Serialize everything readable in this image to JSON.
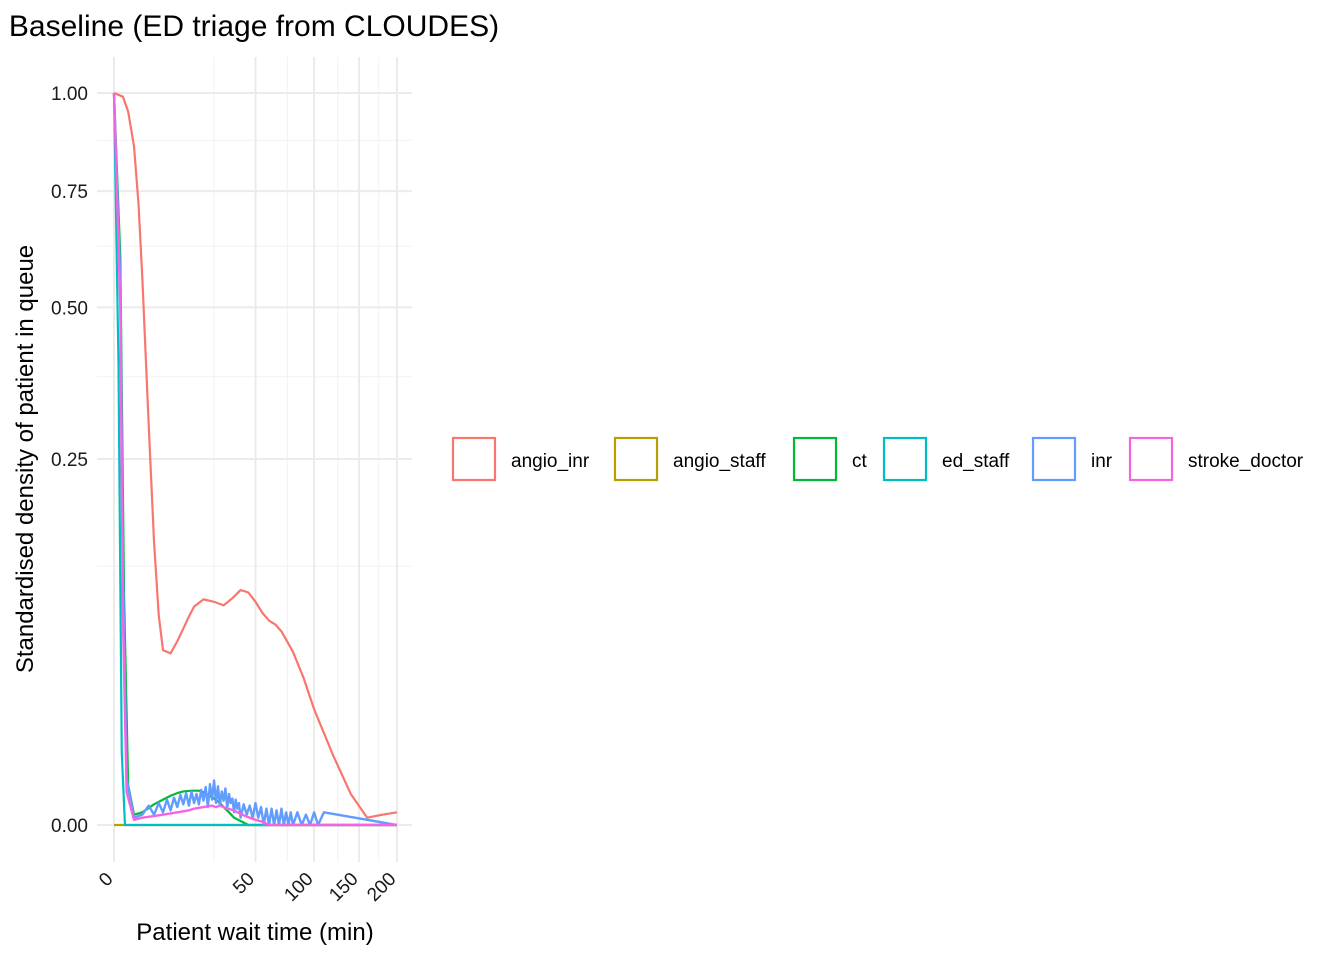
{
  "chart_data": {
    "type": "line",
    "title": "Baseline (ED triage from CLOUDES)",
    "xlabel": "Patient wait time (min)",
    "ylabel": "Standardised density of patient in queue",
    "x_scale": "sqrt",
    "y_scale": "sqrt",
    "xlim": [
      0,
      200
    ],
    "ylim": [
      0,
      1
    ],
    "x_ticks": [
      0,
      50,
      100,
      150,
      200
    ],
    "x_tick_labels": [
      "0",
      "50",
      "100",
      "150",
      "200"
    ],
    "y_ticks": [
      0,
      0.25,
      0.5,
      0.75,
      1
    ],
    "y_tick_labels": [
      "0.00",
      "0.25",
      "0.50",
      "0.75",
      "1.00"
    ],
    "grid": true,
    "legend_position": "right",
    "series": [
      {
        "name": "angio_inr",
        "color": "#F8766D",
        "x": [
          0,
          0.2,
          0.5,
          1,
          1.5,
          2,
          3,
          4,
          5,
          6,
          8,
          10,
          12,
          14,
          16,
          20,
          25,
          30,
          35,
          40,
          45,
          50,
          55,
          60,
          65,
          70,
          80,
          90,
          100,
          120,
          140,
          160,
          180,
          200
        ],
        "y": [
          1.0,
          0.99,
          0.95,
          0.86,
          0.72,
          0.56,
          0.3,
          0.15,
          0.082,
          0.057,
          0.055,
          0.063,
          0.072,
          0.081,
          0.089,
          0.095,
          0.093,
          0.09,
          0.096,
          0.103,
          0.101,
          0.093,
          0.084,
          0.078,
          0.075,
          0.07,
          0.056,
          0.04,
          0.025,
          0.009,
          0.0018,
          0.0001,
          0.0002,
          0.0003
        ]
      },
      {
        "name": "angio_staff",
        "color": "#B79F00",
        "x": [
          0,
          200
        ],
        "y": [
          0,
          0
        ]
      },
      {
        "name": "ct",
        "color": "#00BA38",
        "x": [
          0,
          0.1,
          0.25,
          0.5,
          1,
          2,
          4,
          6,
          8,
          10,
          12,
          15,
          18,
          20,
          22,
          25,
          28,
          30,
          33,
          36,
          40,
          45,
          50,
          200
        ],
        "y": [
          1.0,
          0.6,
          0.1,
          0.003,
          0.0002,
          0.0003,
          0.0008,
          0.0012,
          0.0016,
          0.0019,
          0.0021,
          0.0022,
          0.0022,
          0.002,
          0.0017,
          0.0013,
          0.0009,
          0.0006,
          0.0003,
          0.0001,
          3e-05,
          0,
          0,
          0
        ]
      },
      {
        "name": "ed_staff",
        "color": "#00BFC4",
        "x": [
          0,
          0.05,
          0.15,
          0.3,
          200
        ],
        "y": [
          1.0,
          0.4,
          0.01,
          0,
          0
        ]
      },
      {
        "name": "inr",
        "color": "#619CFF",
        "x": [
          0,
          0.1,
          0.2,
          0.4,
          1,
          2,
          3,
          4,
          5,
          6,
          7,
          8,
          9,
          10,
          11,
          12,
          13,
          14,
          15,
          16,
          17,
          18,
          19,
          20,
          21,
          22,
          23,
          24,
          25,
          26,
          27,
          28,
          29,
          30,
          31,
          32,
          33,
          34,
          35,
          36,
          37,
          38,
          39,
          40,
          42,
          44,
          46,
          48,
          50,
          52,
          54,
          56,
          58,
          60,
          62,
          64,
          66,
          68,
          70,
          72,
          74,
          76,
          78,
          80,
          84,
          88,
          92,
          96,
          100,
          104,
          110,
          200
        ],
        "y": [
          1.0,
          0.55,
          0.12,
          0.004,
          0.0001,
          0.0002,
          0.0007,
          0.0002,
          0.0009,
          0.0003,
          0.0012,
          0.0004,
          0.0014,
          0.0006,
          0.0017,
          0.0008,
          0.0019,
          0.0007,
          0.0021,
          0.0009,
          0.0018,
          0.0008,
          0.0023,
          0.0011,
          0.0027,
          0.0006,
          0.0031,
          0.0012,
          0.0037,
          0.0009,
          0.0028,
          0.0007,
          0.0021,
          0.0011,
          0.0025,
          0.0005,
          0.0018,
          0.0009,
          0.0013,
          0.0003,
          0.0012,
          0.0005,
          0.0009,
          0.0001,
          0.0008,
          0.0002,
          0.0007,
          0.0001,
          0.0009,
          0.0001,
          0.0006,
          0,
          0.0005,
          0,
          0.0005,
          0,
          0.0004,
          0,
          0.0005,
          0,
          0.0003,
          0,
          0.0003,
          0,
          0.0003,
          0,
          0.0002,
          0,
          0.0003,
          0,
          0.0003,
          0
        ]
      },
      {
        "name": "stroke_doctor",
        "color": "#F564E3",
        "x": [
          0,
          0.1,
          0.2,
          0.4,
          1,
          2,
          4,
          6,
          8,
          10,
          12,
          14,
          16,
          18,
          20,
          22,
          24,
          26,
          28,
          30,
          32,
          34,
          36,
          38,
          40,
          43,
          46,
          50,
          55,
          60,
          200
        ],
        "y": [
          1.0,
          0.5,
          0.08,
          0.002,
          5e-05,
          0.0001,
          0.00015,
          0.0002,
          0.00025,
          0.0003,
          0.00035,
          0.0004,
          0.0005,
          0.00055,
          0.0006,
          0.00065,
          0.0007,
          0.0006,
          0.0007,
          0.0006,
          0.0005,
          0.00045,
          0.0004,
          0.0003,
          0.00025,
          0.00015,
          0.0001,
          5e-05,
          2e-05,
          0,
          0
        ]
      }
    ]
  }
}
